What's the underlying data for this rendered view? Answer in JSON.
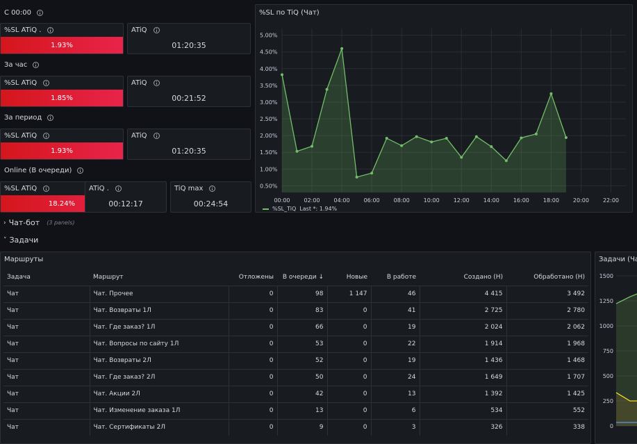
{
  "sections": {
    "since_midnight": "С 00:00",
    "per_hour": "За час",
    "per_period": "За период",
    "online": "Online (В очереди)"
  },
  "stat_rows": [
    {
      "sl_title": "%SL ATiQ .",
      "sl_value": "1.93%",
      "sl_value_pct": 1.93,
      "atiq_title": "ATiQ",
      "atiq_value": "01:20:35"
    },
    {
      "sl_title": "%SL ATiQ",
      "sl_value": "1.85%",
      "sl_value_pct": 1.85,
      "atiq_title": "ATiQ",
      "atiq_value": "00:21:52"
    },
    {
      "sl_title": "%SL ATiQ",
      "sl_value": "1.93%",
      "sl_value_pct": 1.93,
      "atiq_title": "ATiQ",
      "atiq_value": "01:20:35"
    }
  ],
  "online_row": {
    "sl_title": "%SL ATiQ",
    "sl_value": "18.24%",
    "sl_value_pct": 18.24,
    "atiq_title": "ATiQ .",
    "atiq_value": "00:12:17",
    "tiq_title": "TiQ max",
    "tiq_value": "00:24:54"
  },
  "chart_panel": {
    "title": "%SL по TiQ (Чат)",
    "legend_label": "%SL_TiQ",
    "legend_last": "Last *: 1.94%"
  },
  "chart_data": {
    "type": "area",
    "x_ticks": [
      "00:00",
      "02:00",
      "04:00",
      "06:00",
      "08:00",
      "10:00",
      "12:00",
      "14:00",
      "16:00",
      "18:00",
      "20:00",
      "22:00"
    ],
    "y_ticks": [
      "0.50%",
      "1.00%",
      "1.50%",
      "2.00%",
      "2.50%",
      "3.00%",
      "3.50%",
      "4.00%",
      "4.50%",
      "5.00%"
    ],
    "ylim": [
      0.3,
      5.2
    ],
    "xlim": [
      0,
      23
    ],
    "grid": true,
    "series": [
      {
        "name": "%SL_TiQ",
        "color": "#73bf69",
        "x": [
          0,
          1,
          2,
          3,
          4,
          5,
          6,
          7,
          8,
          9,
          10,
          11,
          12,
          13,
          14,
          15,
          16,
          17,
          18,
          19
        ],
        "y": [
          3.82,
          1.53,
          1.68,
          3.38,
          4.6,
          0.76,
          0.88,
          1.92,
          1.7,
          1.97,
          1.81,
          1.92,
          1.35,
          1.97,
          1.67,
          1.25,
          1.93,
          2.05,
          3.25,
          1.94
        ]
      }
    ]
  },
  "collapsed_row": {
    "title": "Чат-бот",
    "count": "(3 panels)"
  },
  "open_row": {
    "title": "Задачи"
  },
  "routes_table": {
    "title": "Маршруты",
    "columns": [
      "Задача",
      "Маршрут",
      "Отложены",
      "В очереди",
      "Новые",
      "В работе",
      "Создано (Н)",
      "Обработано (Н)"
    ],
    "rows": [
      [
        "Чат",
        "Чат. Прочее",
        "0",
        "98",
        "1 147",
        "46",
        "4 415",
        "3 492"
      ],
      [
        "Чат",
        "Чат. Возвраты 1Л",
        "0",
        "83",
        "0",
        "41",
        "2 725",
        "2 780"
      ],
      [
        "Чат",
        "Чат. Где заказ? 1Л",
        "0",
        "66",
        "0",
        "19",
        "2 024",
        "2 062"
      ],
      [
        "Чат",
        "Чат. Вопросы по сайту 1Л",
        "0",
        "53",
        "0",
        "22",
        "1 914",
        "1 968"
      ],
      [
        "Чат",
        "Чат. Возвраты 2Л",
        "0",
        "52",
        "0",
        "19",
        "1 436",
        "1 468"
      ],
      [
        "Чат",
        "Чат. Где заказ? 2Л",
        "0",
        "50",
        "0",
        "24",
        "1 649",
        "1 707"
      ],
      [
        "Чат",
        "Чат. Акции 2Л",
        "0",
        "42",
        "0",
        "13",
        "1 392",
        "1 425"
      ],
      [
        "Чат",
        "Чат. Изменение заказа 1Л",
        "0",
        "13",
        "0",
        "6",
        "534",
        "552"
      ],
      [
        "Чат",
        "Чат. Сертификаты 2Л",
        "0",
        "9",
        "0",
        "3",
        "326",
        "338"
      ]
    ]
  },
  "tasks_chart": {
    "title": "Задачи (Чат",
    "y_ticks": [
      "0",
      "250",
      "500",
      "750",
      "1000",
      "1250",
      "1500"
    ]
  },
  "colors": {
    "series": "#73bf69",
    "sl_bar_start": "#d4161c",
    "sl_bar_end": "#e8244a",
    "bg": "#111217",
    "panel": "#181b1f"
  }
}
